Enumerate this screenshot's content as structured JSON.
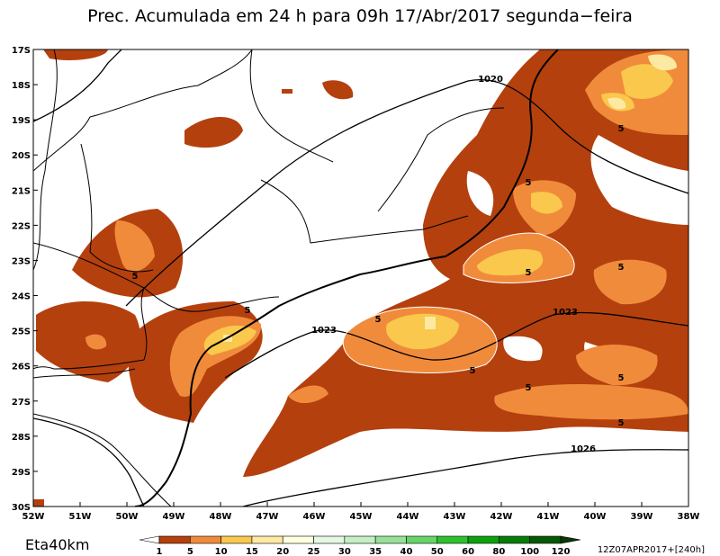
{
  "title": "Prec. Acumulada em 24 h para 09h 17/Abr/2017 segunda−feira",
  "model": "Eta40km",
  "run": "12Z07APR2017+[240h]",
  "lon_labels": [
    "52W",
    "51W",
    "50W",
    "49W",
    "48W",
    "47W",
    "46W",
    "45W",
    "44W",
    "43W",
    "42W",
    "41W",
    "40W",
    "39W",
    "38W"
  ],
  "lat_labels": [
    "17S",
    "18S",
    "19S",
    "20S",
    "21S",
    "22S",
    "23S",
    "24S",
    "25S",
    "26S",
    "27S",
    "28S",
    "29S",
    "30S"
  ],
  "isobar_labels": [
    "1020",
    "1023",
    "1023",
    "1026"
  ],
  "precip_labels": [
    "5",
    "5",
    "5",
    "5",
    "5",
    "5",
    "5",
    "5",
    "5",
    "5",
    "5"
  ],
  "colorbar": {
    "labels": [
      1,
      5,
      10,
      15,
      20,
      25,
      30,
      35,
      40,
      50,
      60,
      80,
      100,
      120
    ],
    "colors": [
      "#ffffff",
      "#b4400e",
      "#f08b3c",
      "#f9c84c",
      "#fde9a2",
      "#ffffe0",
      "#e4f8e4",
      "#c4eec4",
      "#98e098",
      "#66d466",
      "#2ec02e",
      "#0ca00c",
      "#087a08",
      "#055805",
      "#033a03"
    ]
  }
}
